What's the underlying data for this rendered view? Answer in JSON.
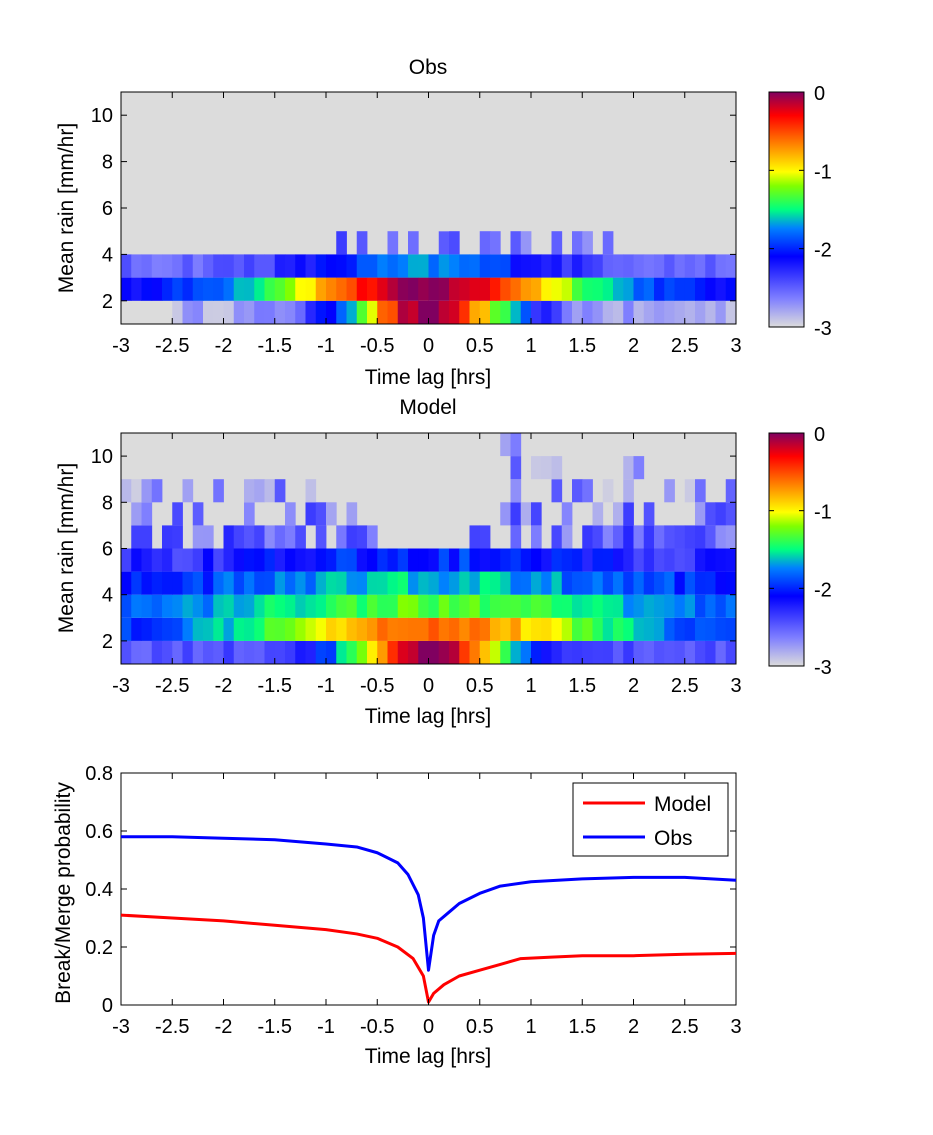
{
  "chart_data": [
    {
      "type": "heatmap",
      "title": "Obs",
      "xlabel": "Time lag [hrs]",
      "ylabel": "Mean rain [mm/hr]",
      "xlim": [
        -3,
        3
      ],
      "ylim": [
        1,
        11
      ],
      "xticks": [
        "-3",
        "-2.5",
        "-2",
        "-1.5",
        "-1",
        "-0.5",
        "0",
        "0.5",
        "1",
        "1.5",
        "2",
        "2.5",
        "3"
      ],
      "yticks": [
        "2",
        "4",
        "6",
        "8",
        "10"
      ],
      "colorbar": {
        "min": -3,
        "max": 0,
        "ticks": [
          "0",
          "-1",
          "-2",
          "-3"
        ]
      },
      "background_color": "#dcdcdc",
      "rows": [
        {
          "y0": 1,
          "y1": 2,
          "center": 0,
          "peak": 0.0,
          "width": 0.85,
          "floor": -2.8,
          "noise": 0.15,
          "cut_left": -2.5
        },
        {
          "y0": 2,
          "y1": 3,
          "center": 0,
          "peak": -0.05,
          "width": 1.6,
          "floor": -2.2,
          "noise": 0.1
        },
        {
          "y0": 3,
          "y1": 4,
          "center": 0,
          "peak": -1.75,
          "width": 1.3,
          "floor": -2.55,
          "noise": 0.12
        },
        {
          "y0": 4,
          "y1": 5,
          "sparse": true,
          "min": -0.9,
          "max": 1.8,
          "density": 0.55,
          "level": -2.6
        },
        {
          "y0": 5,
          "y1": 6,
          "sparse": true,
          "min": 0.1,
          "max": 0.2,
          "density": 1.0,
          "level": -2.9
        }
      ]
    },
    {
      "type": "heatmap",
      "title": "Model",
      "xlabel": "Time lag [hrs]",
      "ylabel": "Mean rain [mm/hr]",
      "xlim": [
        -3,
        3
      ],
      "ylim": [
        1,
        11
      ],
      "xticks": [
        "-3",
        "-2.5",
        "-2",
        "-1.5",
        "-1",
        "-0.5",
        "0",
        "0.5",
        "1",
        "1.5",
        "2",
        "2.5",
        "3"
      ],
      "yticks": [
        "2",
        "4",
        "6",
        "8",
        "10"
      ],
      "colorbar": {
        "min": -3,
        "max": 0,
        "ticks": [
          "0",
          "-1",
          "-2",
          "-3"
        ]
      },
      "background_color": "#dcdcdc",
      "rows": [
        {
          "y0": 1,
          "y1": 2,
          "center": 0,
          "peak": 0.0,
          "width": 0.8,
          "floor": -2.45,
          "noise": 0.12
        },
        {
          "y0": 2,
          "y1": 3,
          "center": 0,
          "peak": -0.55,
          "width": 1.9,
          "floor": -2.1,
          "noise": 0.12
        },
        {
          "y0": 3,
          "y1": 4,
          "center": 0,
          "peak": -1.3,
          "width": 2.2,
          "floor": -1.95,
          "noise": 0.12
        },
        {
          "y0": 4,
          "y1": 5,
          "center": 0,
          "peak": -1.6,
          "width": 2.0,
          "floor": -2.05,
          "noise": 0.15
        },
        {
          "y0": 5,
          "y1": 6,
          "center": 0,
          "peak": -2.0,
          "width": 2.0,
          "floor": -2.35,
          "noise": 0.18
        },
        {
          "y0": 6,
          "y1": 7,
          "sparse": true,
          "min": -3,
          "max": 3,
          "density": 0.85,
          "level": -2.5,
          "gap": [
            -0.5,
            0.3
          ]
        },
        {
          "y0": 7,
          "y1": 8,
          "sparse": true,
          "min": -3,
          "max": 3,
          "density": 0.6,
          "level": -2.6,
          "gap": [
            -0.7,
            0.3
          ]
        },
        {
          "y0": 8,
          "y1": 9,
          "sparse": true,
          "min": -3,
          "max": 3,
          "density": 0.35,
          "level": -2.7,
          "gap": [
            -1.0,
            0.6
          ]
        },
        {
          "y0": 9,
          "y1": 10,
          "sparse": true,
          "min": 0.6,
          "max": 2.2,
          "density": 0.45,
          "level": -2.7
        },
        {
          "y0": 10,
          "y1": 11,
          "sparse": true,
          "min": 0.7,
          "max": 1.5,
          "density": 0.4,
          "level": -2.8
        }
      ]
    },
    {
      "type": "line",
      "xlabel": "Time lag [hrs]",
      "ylabel": "Break/Merge probability",
      "xlim": [
        -3,
        3
      ],
      "ylim": [
        0,
        0.8
      ],
      "xticks": [
        "-3",
        "-2.5",
        "-2",
        "-1.5",
        "-1",
        "-0.5",
        "0",
        "0.5",
        "1",
        "1.5",
        "2",
        "2.5",
        "3"
      ],
      "yticks": [
        "0",
        "0.2",
        "0.4",
        "0.6",
        "0.8"
      ],
      "legend": "top-right",
      "series": [
        {
          "name": "Model",
          "color": "#ff0000",
          "x": [
            -3,
            -2.5,
            -2,
            -1.5,
            -1,
            -0.7,
            -0.5,
            -0.3,
            -0.15,
            -0.05,
            0,
            0.05,
            0.15,
            0.3,
            0.5,
            0.7,
            0.9,
            1.2,
            1.5,
            2,
            2.5,
            3
          ],
          "y": [
            0.31,
            0.3,
            0.29,
            0.275,
            0.26,
            0.245,
            0.23,
            0.2,
            0.16,
            0.1,
            0.01,
            0.04,
            0.07,
            0.1,
            0.12,
            0.14,
            0.16,
            0.165,
            0.17,
            0.17,
            0.175,
            0.178
          ]
        },
        {
          "name": "Obs",
          "color": "#0000ff",
          "x": [
            -3,
            -2.5,
            -2,
            -1.5,
            -1,
            -0.7,
            -0.5,
            -0.3,
            -0.2,
            -0.1,
            -0.05,
            0,
            0.05,
            0.1,
            0.2,
            0.3,
            0.5,
            0.7,
            1,
            1.5,
            2,
            2.5,
            3
          ],
          "y": [
            0.58,
            0.58,
            0.575,
            0.57,
            0.555,
            0.545,
            0.525,
            0.49,
            0.45,
            0.38,
            0.3,
            0.12,
            0.24,
            0.29,
            0.32,
            0.35,
            0.385,
            0.41,
            0.425,
            0.435,
            0.44,
            0.44,
            0.43
          ]
        }
      ]
    }
  ]
}
